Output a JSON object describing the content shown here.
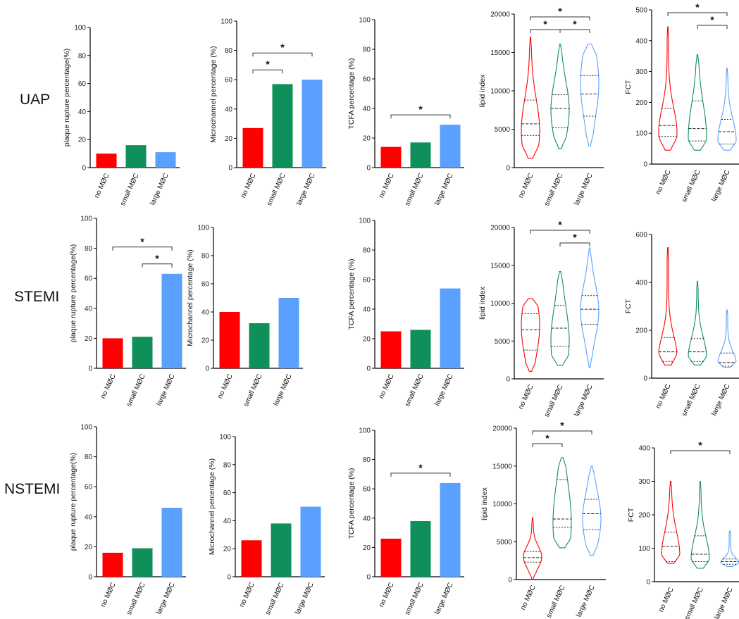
{
  "colors": {
    "no": "#ff0000",
    "small": "#0f8f5a",
    "large": "#5aa0ff",
    "axis": "#000000",
    "sig": "#333333"
  },
  "row_labels": [
    "UAP",
    "STEMI",
    "NSTEMI"
  ],
  "chart_data": [
    {
      "type": "bar",
      "row": "UAP",
      "ylabel": "plaque rupture percentage(%)",
      "categories": [
        "no MØC",
        "small MØC",
        "large MØC"
      ],
      "values": [
        10,
        16,
        11
      ],
      "ylim": [
        0,
        100
      ],
      "yticks": [
        0,
        20,
        40,
        60,
        80,
        100
      ],
      "brackets": []
    },
    {
      "type": "bar",
      "row": "UAP",
      "ylabel": "Microchannel percentage (%)",
      "categories": [
        "no MØC",
        "small MØC",
        "large MØC"
      ],
      "values": [
        27,
        57,
        60
      ],
      "ylim": [
        0,
        100
      ],
      "yticks": [
        0,
        20,
        40,
        60,
        80,
        100
      ],
      "brackets": [
        {
          "from": 0,
          "to": 2,
          "label": "*"
        },
        {
          "from": 0,
          "to": 1,
          "label": "*"
        }
      ]
    },
    {
      "type": "bar",
      "row": "UAP",
      "ylabel": "TCFA percentage (%)",
      "categories": [
        "no MØC",
        "small MØC",
        "large MØC"
      ],
      "values": [
        14,
        17,
        29
      ],
      "ylim": [
        0,
        100
      ],
      "yticks": [
        0,
        20,
        40,
        60,
        80,
        100
      ],
      "brackets": [
        {
          "from": 0,
          "to": 2,
          "label": "*"
        }
      ]
    },
    {
      "type": "violin",
      "row": "UAP",
      "ylabel": "lipid index",
      "categories": [
        "no MØC",
        "small MØC",
        "large MØC"
      ],
      "ylim": [
        0,
        20000
      ],
      "yticks": [
        0,
        5000,
        10000,
        15000,
        20000
      ],
      "groups": [
        {
          "min": 1200,
          "max": 17000,
          "q1": 4200,
          "median": 5700,
          "q3": 8800,
          "mode": 4800
        },
        {
          "min": 2500,
          "max": 16100,
          "q1": 5200,
          "median": 7700,
          "q3": 9500,
          "mode": 7500
        },
        {
          "min": 2800,
          "max": 16100,
          "q1": 6700,
          "median": 9600,
          "q3": 12000,
          "mode": 11000
        }
      ],
      "brackets": [
        {
          "from": 0,
          "to": 2,
          "label": "*"
        },
        {
          "from": 0,
          "to": 1,
          "label": "*"
        },
        {
          "from": 1,
          "to": 2,
          "label": "*"
        }
      ]
    },
    {
      "type": "violin",
      "row": "UAP",
      "ylabel": "FCT",
      "categories": [
        "no MØC",
        "small MØC",
        "large MØC"
      ],
      "ylim": [
        0,
        500
      ],
      "yticks": [
        0,
        100,
        200,
        300,
        400,
        500
      ],
      "groups": [
        {
          "min": 45,
          "max": 445,
          "q1": 90,
          "median": 125,
          "q3": 180,
          "mode": 100
        },
        {
          "min": 45,
          "max": 355,
          "q1": 75,
          "median": 115,
          "q3": 205,
          "mode": 85
        },
        {
          "min": 45,
          "max": 310,
          "q1": 65,
          "median": 105,
          "q3": 145,
          "mode": 75
        }
      ],
      "brackets": [
        {
          "from": 0,
          "to": 2,
          "label": "*"
        },
        {
          "from": 1,
          "to": 2,
          "label": "*"
        }
      ]
    },
    {
      "type": "bar",
      "row": "STEMI",
      "ylabel": "plaque rupture percentage(%)",
      "categories": [
        "no MØC",
        "small MØC",
        "large MØC"
      ],
      "values": [
        20,
        21,
        63
      ],
      "ylim": [
        0,
        100
      ],
      "yticks": [
        0,
        20,
        40,
        60,
        80,
        100
      ],
      "brackets": [
        {
          "from": 0,
          "to": 2,
          "label": "*"
        },
        {
          "from": 1,
          "to": 2,
          "label": "*"
        }
      ]
    },
    {
      "type": "bar",
      "row": "STEMI",
      "ylabel": "Microchannel percentage (%)",
      "categories": [
        "no MØC",
        "small MØC",
        "large MØC"
      ],
      "values": [
        40,
        32,
        50
      ],
      "ylim": [
        0,
        100
      ],
      "yticks": [
        0,
        20,
        40,
        60,
        80,
        100
      ],
      "brackets": []
    },
    {
      "type": "bar",
      "row": "STEMI",
      "ylabel": "TCFA percentage (%)",
      "categories": [
        "no MØC",
        "small MØC",
        "large MØC"
      ],
      "values": [
        25,
        26,
        54
      ],
      "ylim": [
        0,
        100
      ],
      "yticks": [
        0,
        20,
        40,
        60,
        80,
        100
      ],
      "brackets": []
    },
    {
      "type": "violin",
      "row": "STEMI",
      "ylabel": "lipid index",
      "categories": [
        "no MØC",
        "small MØC",
        "large MØC"
      ],
      "ylim": [
        0,
        20000
      ],
      "yticks": [
        0,
        5000,
        10000,
        15000,
        20000
      ],
      "groups": [
        {
          "min": 1000,
          "max": 10600,
          "q1": 3800,
          "median": 6500,
          "q3": 8600,
          "mode": 7000
        },
        {
          "min": 1800,
          "max": 14200,
          "q1": 4300,
          "median": 6700,
          "q3": 9700,
          "mode": 5000
        },
        {
          "min": 1500,
          "max": 17300,
          "q1": 7200,
          "median": 9200,
          "q3": 11000,
          "mode": 9000
        }
      ],
      "brackets": [
        {
          "from": 0,
          "to": 2,
          "label": "*"
        },
        {
          "from": 1,
          "to": 2,
          "label": "*"
        }
      ]
    },
    {
      "type": "violin",
      "row": "STEMI",
      "ylabel": "FCT",
      "categories": [
        "no MØC",
        "small MØC",
        "large MØC"
      ],
      "ylim": [
        0,
        600
      ],
      "yticks": [
        0,
        200,
        400,
        600
      ],
      "groups": [
        {
          "min": 55,
          "max": 545,
          "q1": 70,
          "median": 110,
          "q3": 170,
          "mode": 80
        },
        {
          "min": 55,
          "max": 405,
          "q1": 70,
          "median": 110,
          "q3": 165,
          "mode": 85
        },
        {
          "min": 45,
          "max": 285,
          "q1": 50,
          "median": 65,
          "q3": 105,
          "mode": 60
        }
      ],
      "brackets": []
    },
    {
      "type": "bar",
      "row": "NSTEMI",
      "ylabel": "plaque rupture percentage(%)",
      "categories": [
        "no MØC",
        "small MØC",
        "large MØC"
      ],
      "values": [
        16,
        19,
        46
      ],
      "ylim": [
        0,
        100
      ],
      "yticks": [
        0,
        20,
        40,
        60,
        80,
        100
      ],
      "brackets": []
    },
    {
      "type": "bar",
      "row": "NSTEMI",
      "ylabel": "Microchannel percentage (%)",
      "categories": [
        "no MØC",
        "small MØC",
        "large MØC"
      ],
      "values": [
        26,
        38,
        50
      ],
      "ylim": [
        0,
        100
      ],
      "yticks": [
        0,
        20,
        40,
        60,
        80,
        100
      ],
      "brackets": []
    },
    {
      "type": "bar",
      "row": "NSTEMI",
      "ylabel": "TCFA percentage (%)",
      "categories": [
        "no MØC",
        "small MØC",
        "large MØC"
      ],
      "values": [
        26,
        38,
        64
      ],
      "ylim": [
        0,
        100
      ],
      "yticks": [
        0,
        20,
        40,
        60,
        80,
        100
      ],
      "brackets": [
        {
          "from": 0,
          "to": 2,
          "label": "*"
        }
      ]
    },
    {
      "type": "violin",
      "row": "NSTEMI",
      "ylabel": "lipid index",
      "categories": [
        "no MØC",
        "small MØC",
        "large MØC"
      ],
      "ylim": [
        0,
        20000
      ],
      "yticks": [
        0,
        5000,
        10000,
        15000,
        20000
      ],
      "groups": [
        {
          "min": 0,
          "max": 8200,
          "q1": 2300,
          "median": 2900,
          "q3": 3700,
          "mode": 3000
        },
        {
          "min": 4200,
          "max": 16100,
          "q1": 6900,
          "median": 8000,
          "q3": 13200,
          "mode": 7500
        },
        {
          "min": 3200,
          "max": 15000,
          "q1": 6600,
          "median": 8700,
          "q3": 10600,
          "mode": 8000
        }
      ],
      "brackets": [
        {
          "from": 0,
          "to": 2,
          "label": "*"
        },
        {
          "from": 0,
          "to": 1,
          "label": "*"
        }
      ]
    },
    {
      "type": "violin",
      "row": "NSTEMI",
      "ylabel": "FCT",
      "categories": [
        "no MØC",
        "small MØC",
        "large MØC"
      ],
      "ylim": [
        0,
        400
      ],
      "yticks": [
        0,
        100,
        200,
        300,
        400
      ],
      "groups": [
        {
          "min": 55,
          "max": 300,
          "q1": 60,
          "median": 105,
          "q3": 148,
          "mode": 75
        },
        {
          "min": 40,
          "max": 300,
          "q1": 60,
          "median": 82,
          "q3": 137,
          "mode": 65
        },
        {
          "min": 45,
          "max": 152,
          "q1": 52,
          "median": 60,
          "q3": 68,
          "mode": 55
        }
      ],
      "brackets": [
        {
          "from": 0,
          "to": 2,
          "label": "*"
        }
      ]
    }
  ]
}
